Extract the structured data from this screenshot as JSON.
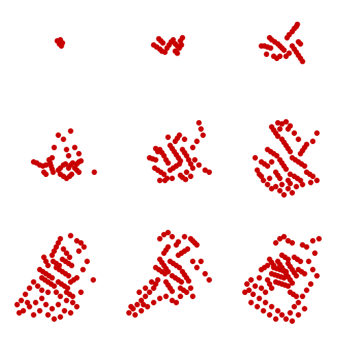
{
  "chart_data": [
    {
      "type": "scatter",
      "color": "#c80000",
      "marker": "circle",
      "xlim": [
        0,
        100
      ],
      "ylim": [
        0,
        100
      ],
      "tick_labels": false,
      "grid": false,
      "x": [
        49,
        52,
        51,
        54,
        53
      ],
      "values": [
        67,
        68,
        64,
        65,
        62
      ]
    },
    {
      "type": "scatter",
      "color": "#c80000",
      "marker": "circle",
      "xlim": [
        0,
        100
      ],
      "ylim": [
        0,
        100
      ],
      "tick_labels": false,
      "grid": false,
      "x": [
        34,
        37,
        40,
        42,
        45,
        47,
        49,
        51,
        53,
        55,
        57,
        59,
        61,
        60,
        62,
        55,
        57,
        43,
        41,
        39
      ],
      "values": [
        63,
        61,
        59,
        57,
        56,
        60,
        63,
        66,
        68,
        64,
        62,
        60,
        63,
        67,
        70,
        57,
        55,
        65,
        67,
        69
      ]
    },
    {
      "type": "scatter",
      "color": "#c80000",
      "marker": "circle",
      "xlim": [
        0,
        100
      ],
      "ylim": [
        0,
        100
      ],
      "tick_labels": false,
      "grid": false,
      "x": [
        30,
        33,
        36,
        39,
        43,
        46,
        48,
        50,
        52,
        55,
        57,
        60,
        62,
        64,
        65,
        60,
        62,
        64,
        66,
        68,
        70,
        57,
        54,
        48,
        45,
        42,
        35,
        66,
        68,
        40,
        38
      ],
      "values": [
        62,
        62,
        61,
        60,
        66,
        64,
        62,
        60,
        58,
        70,
        73,
        76,
        79,
        81,
        83,
        62,
        59,
        56,
        53,
        50,
        47,
        55,
        52,
        52,
        50,
        52,
        54,
        66,
        64,
        68,
        70
      ]
    },
    {
      "type": "scatter",
      "color": "#c80000",
      "marker": "circle",
      "xlim": [
        0,
        100
      ],
      "ylim": [
        0,
        100
      ],
      "tick_labels": false,
      "grid": false,
      "x": [
        26,
        29,
        32,
        35,
        38,
        41,
        42,
        43,
        44,
        45,
        50,
        52,
        55,
        57,
        52,
        55,
        58,
        61,
        63,
        60,
        62,
        64,
        66,
        68,
        70,
        68,
        70,
        72,
        36,
        38,
        50,
        55,
        62,
        46,
        58,
        44,
        70,
        85,
        66,
        60
      ],
      "values": [
        58,
        57,
        55,
        54,
        55,
        60,
        57,
        54,
        51,
        48,
        50,
        52,
        55,
        56,
        46,
        44,
        42,
        44,
        46,
        52,
        55,
        57,
        52,
        50,
        48,
        56,
        58,
        59,
        48,
        46,
        84,
        80,
        88,
        72,
        70,
        62,
        66,
        48,
        72,
        64
      ]
    },
    {
      "type": "scatter",
      "color": "#c80000",
      "marker": "circle",
      "xlim": [
        0,
        100
      ],
      "ylim": [
        0,
        100
      ],
      "tick_labels": false,
      "grid": false,
      "x": [
        30,
        33,
        36,
        40,
        42,
        44,
        46,
        48,
        50,
        52,
        54,
        56,
        58,
        60,
        35,
        38,
        41,
        44,
        50,
        53,
        56,
        59,
        62,
        64,
        66,
        68,
        70,
        72,
        60,
        62,
        65,
        45,
        47,
        55,
        57,
        59,
        38,
        36,
        78,
        80,
        82,
        76,
        74,
        78,
        84,
        88,
        66,
        70,
        40,
        52,
        48,
        64,
        72
      ],
      "values": [
        62,
        61,
        60,
        70,
        67,
        64,
        60,
        57,
        74,
        71,
        68,
        65,
        62,
        59,
        52,
        50,
        48,
        46,
        50,
        52,
        54,
        56,
        70,
        67,
        64,
        60,
        56,
        52,
        45,
        43,
        41,
        40,
        42,
        78,
        81,
        84,
        68,
        71,
        96,
        90,
        84,
        78,
        60,
        55,
        50,
        48,
        48,
        44,
        40,
        42,
        82,
        80,
        72
      ]
    },
    {
      "type": "scatter",
      "color": "#c80000",
      "marker": "circle",
      "xlim": [
        0,
        100
      ],
      "ylim": [
        0,
        100
      ],
      "tick_labels": false,
      "grid": false,
      "x": [
        40,
        42,
        44,
        46,
        50,
        52,
        54,
        56,
        58,
        36,
        39,
        42,
        45,
        30,
        33,
        36,
        48,
        50,
        52,
        54,
        60,
        63,
        66,
        69,
        72,
        68,
        70,
        72,
        74,
        62,
        65,
        68,
        44,
        46,
        48,
        56,
        58,
        74,
        77,
        80,
        28,
        30,
        46,
        50,
        54,
        58,
        48,
        56,
        84,
        80,
        24,
        26,
        32,
        36,
        40,
        44,
        48,
        52,
        56,
        60,
        64,
        70,
        78,
        84,
        38,
        50,
        58,
        40,
        62,
        66
      ],
      "values": [
        92,
        89,
        86,
        83,
        80,
        77,
        74,
        71,
        68,
        70,
        68,
        66,
        64,
        58,
        56,
        54,
        60,
        57,
        54,
        51,
        62,
        60,
        58,
        56,
        54,
        66,
        69,
        72,
        75,
        44,
        42,
        40,
        48,
        45,
        42,
        40,
        37,
        48,
        46,
        44,
        46,
        44,
        96,
        95,
        97,
        93,
        90,
        90,
        86,
        78,
        62,
        50,
        40,
        36,
        32,
        34,
        30,
        26,
        32,
        28,
        34,
        36,
        38,
        40,
        42,
        36,
        46,
        58,
        86,
        80
      ]
    },
    {
      "type": "scatter",
      "color": "#c80000",
      "marker": "circle",
      "xlim": [
        0,
        100
      ],
      "ylim": [
        0,
        100
      ],
      "tick_labels": false,
      "grid": false,
      "x": [
        32,
        35,
        38,
        41,
        44,
        34,
        37,
        40,
        43,
        46,
        48,
        51,
        54,
        57,
        60,
        45,
        48,
        51,
        54,
        57,
        60,
        63,
        50,
        53,
        56,
        59,
        62,
        65,
        68,
        44,
        46,
        48,
        50,
        52,
        55,
        58,
        61,
        40,
        38,
        36,
        58,
        61,
        64,
        62,
        68,
        72,
        75,
        70,
        78,
        74,
        84,
        64,
        58,
        52,
        48,
        40,
        34,
        30,
        26,
        22,
        18,
        14,
        10,
        16,
        22,
        28,
        34,
        26,
        32,
        38,
        44,
        50,
        56,
        62,
        68,
        40,
        46,
        52,
        20,
        12,
        72
      ],
      "values": [
        62,
        60,
        58,
        56,
        54,
        54,
        52,
        50,
        48,
        46,
        64,
        62,
        60,
        58,
        56,
        70,
        68,
        66,
        72,
        70,
        68,
        66,
        50,
        48,
        46,
        44,
        50,
        52,
        54,
        76,
        80,
        84,
        88,
        92,
        82,
        78,
        74,
        66,
        70,
        74,
        40,
        38,
        36,
        95,
        90,
        88,
        84,
        80,
        70,
        62,
        52,
        30,
        32,
        36,
        40,
        40,
        42,
        46,
        50,
        44,
        38,
        32,
        28,
        22,
        26,
        30,
        34,
        18,
        22,
        28,
        24,
        28,
        22,
        20,
        26,
        18,
        14,
        16,
        30,
        20,
        40
      ]
    },
    {
      "type": "scatter",
      "color": "#c80000",
      "marker": "circle",
      "xlim": [
        0,
        100
      ],
      "ylim": [
        0,
        100
      ],
      "tick_labels": false,
      "grid": false,
      "x": [
        36,
        39,
        42,
        45,
        40,
        42,
        44,
        46,
        48,
        50,
        53,
        56,
        59,
        52,
        55,
        58,
        61,
        46,
        48,
        50,
        52,
        58,
        61,
        64,
        67,
        70,
        72,
        74,
        76,
        62,
        64,
        66,
        68,
        38,
        36,
        34,
        60,
        63,
        66,
        44,
        46,
        48,
        56,
        58,
        40,
        44,
        48,
        52,
        64,
        80,
        76,
        84,
        88,
        72,
        70,
        72,
        30,
        26,
        22,
        18,
        14,
        10,
        16,
        22,
        28,
        34,
        40,
        46,
        52,
        20,
        26,
        32,
        60,
        56,
        12,
        24
      ],
      "values": [
        64,
        62,
        60,
        58,
        72,
        69,
        66,
        63,
        60,
        70,
        68,
        66,
        64,
        56,
        54,
        52,
        50,
        50,
        47,
        44,
        41,
        76,
        78,
        80,
        82,
        92,
        90,
        88,
        86,
        60,
        57,
        54,
        51,
        52,
        48,
        44,
        44,
        42,
        40,
        78,
        81,
        84,
        86,
        89,
        92,
        96,
        98,
        94,
        94,
        70,
        64,
        58,
        52,
        70,
        44,
        36,
        40,
        36,
        32,
        28,
        24,
        20,
        18,
        22,
        26,
        30,
        34,
        36,
        32,
        40,
        44,
        50,
        36,
        30,
        26,
        28
      ]
    },
    {
      "type": "scatter",
      "color": "#c80000",
      "marker": "circle",
      "xlim": [
        0,
        100
      ],
      "ylim": [
        0,
        100
      ],
      "tick_labels": false,
      "grid": false,
      "x": [
        40,
        43,
        46,
        49,
        52,
        42,
        45,
        48,
        51,
        54,
        44,
        47,
        50,
        53,
        56,
        46,
        48,
        50,
        52,
        54,
        56,
        58,
        60,
        38,
        40,
        42,
        56,
        58,
        60,
        62,
        64,
        36,
        38,
        40,
        58,
        61,
        64,
        50,
        53,
        56,
        62,
        65,
        68,
        66,
        69,
        72,
        30,
        33,
        36,
        44,
        48,
        52,
        56,
        60,
        70,
        74,
        80,
        86,
        82,
        76,
        80,
        84,
        78,
        74,
        70,
        66,
        62,
        58,
        54,
        50,
        46,
        40,
        34,
        28,
        22,
        18,
        24,
        20,
        16,
        14,
        20,
        26,
        32,
        38,
        44,
        60,
        66,
        72,
        30,
        34,
        28
      ],
      "values": [
        58,
        57,
        56,
        55,
        54,
        64,
        63,
        62,
        61,
        60,
        50,
        49,
        48,
        47,
        46,
        70,
        67,
        64,
        61,
        58,
        55,
        52,
        49,
        72,
        69,
        66,
        68,
        65,
        62,
        59,
        56,
        52,
        48,
        44,
        40,
        38,
        36,
        76,
        74,
        72,
        74,
        72,
        70,
        62,
        60,
        58,
        62,
        64,
        66,
        88,
        92,
        94,
        90,
        88,
        86,
        84,
        90,
        92,
        78,
        70,
        62,
        56,
        48,
        42,
        36,
        30,
        26,
        20,
        14,
        18,
        22,
        26,
        30,
        34,
        38,
        42,
        46,
        52,
        48,
        40,
        30,
        26,
        22,
        18,
        14,
        12,
        18,
        24,
        44,
        40,
        54
      ]
    }
  ]
}
